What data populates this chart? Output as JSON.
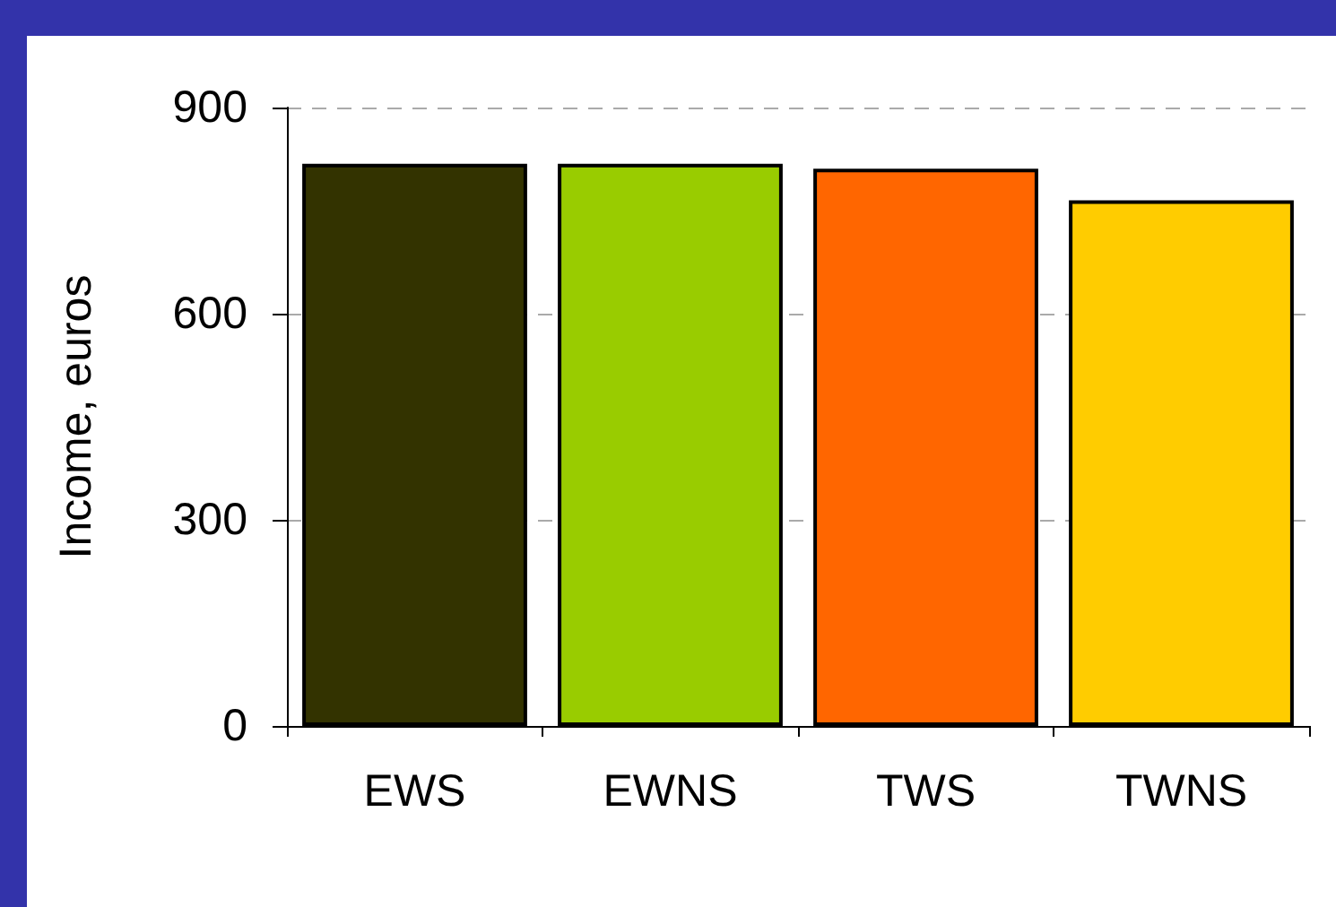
{
  "chart_data": {
    "type": "bar",
    "ylabel": "Income, euros",
    "categories": [
      "EWS",
      "EWNS",
      "TWS",
      "TWNS"
    ],
    "values": [
      818,
      818,
      811,
      765
    ],
    "colors": [
      "#333300",
      "#99cc00",
      "#ff6600",
      "#ffcc00"
    ],
    "ylim": [
      0,
      900
    ],
    "yticks": [
      0,
      300,
      600,
      900
    ],
    "grid": "y"
  }
}
